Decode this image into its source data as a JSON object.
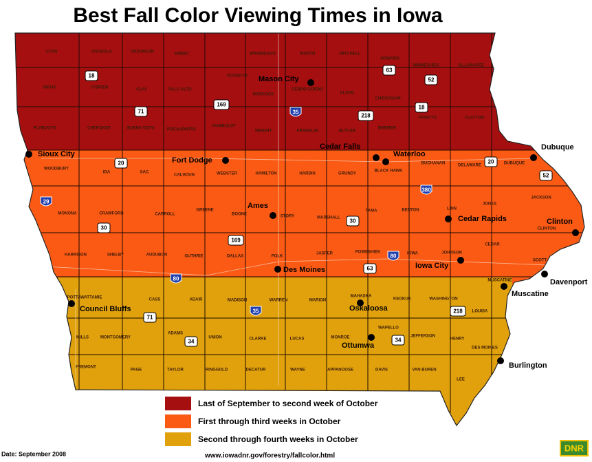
{
  "title": "Best Fall Color Viewing Times in Iowa",
  "cities": [
    "Mason City",
    "Sioux City",
    "Fort Dodge",
    "Cedar Falls",
    "Waterloo",
    "Dubuque",
    "Ames",
    "Cedar Rapids",
    "Clinton",
    "Des Moines",
    "Iowa City",
    "Davenport",
    "Council Bluffs",
    "Muscatine",
    "Oskaloosa",
    "Ottumwa",
    "Burlington"
  ],
  "counties": [
    "LYON",
    "OSCEOLA",
    "DICKINSON",
    "EMMET",
    "WINNEBAGO",
    "WORTH",
    "MITCHELL",
    "HOWARD",
    "WINNESHIEK",
    "ALLAMAKEE",
    "SIOUX",
    "O'BRIEN",
    "CLAY",
    "PALO ALTO",
    "KOSSUTH",
    "HANCOCK",
    "CERRO GORDO",
    "FLOYD",
    "CHICKASAW",
    "FAYETTE",
    "CLAYTON",
    "PLYMOUTH",
    "CHEROKEE",
    "BUENA VISTA",
    "POCAHONTAS",
    "HUMBOLDT",
    "WRIGHT",
    "FRANKLIN",
    "BUTLER",
    "BREMER",
    "WOODBURY",
    "IDA",
    "SAC",
    "CALHOUN",
    "WEBSTER",
    "HAMILTON",
    "HARDIN",
    "GRUNDY",
    "BLACK HAWK",
    "BUCHANAN",
    "DELAWARE",
    "DUBUQUE",
    "MONONA",
    "CRAWFORD",
    "CARROLL",
    "GREENE",
    "BOONE",
    "STORY",
    "MARSHALL",
    "TAMA",
    "BENTON",
    "LINN",
    "JONES",
    "JACKSON",
    "CLINTON",
    "HARRISON",
    "SHELBY",
    "AUDUBON",
    "GUTHRIE",
    "DALLAS",
    "POLK",
    "JASPER",
    "POWESHIEK",
    "IOWA",
    "JOHNSON",
    "CEDAR",
    "SCOTT",
    "POTTAWATTAMIE",
    "CASS",
    "ADAIR",
    "MADISON",
    "WARREN",
    "MARION",
    "MAHASKA",
    "KEOKUK",
    "WASHINGTON",
    "MUSCATINE",
    "LOUISA",
    "MILLS",
    "MONTGOMERY",
    "ADAMS",
    "UNION",
    "CLARKE",
    "LUCAS",
    "MONROE",
    "WAPELLO",
    "JEFFERSON",
    "HENRY",
    "DES MOINES",
    "FREMONT",
    "PAGE",
    "TAYLOR",
    "RINGGOLD",
    "DECATUR",
    "WAYNE",
    "APPANOOSE",
    "DAVIS",
    "VAN BUREN",
    "LEE"
  ],
  "highways": [
    "18",
    "63",
    "52",
    "71",
    "169",
    "35",
    "218",
    "18",
    "20",
    "20",
    "52",
    "29",
    "380",
    "30",
    "30",
    "169",
    "63",
    "80",
    "80",
    "35",
    "71",
    "218",
    "34",
    "34"
  ],
  "legend": [
    {
      "label": "Last of September to second week of October",
      "color": "#a50f0f"
    },
    {
      "label": "First through third weeks in October",
      "color": "#fb5a14"
    },
    {
      "label": "Second through fourth weeks in October",
      "color": "#e0a10c"
    }
  ],
  "date": "Date: September 2008",
  "url": "www.iowadnr.gov/forestry/fallcolor.html",
  "logo": "DNR"
}
